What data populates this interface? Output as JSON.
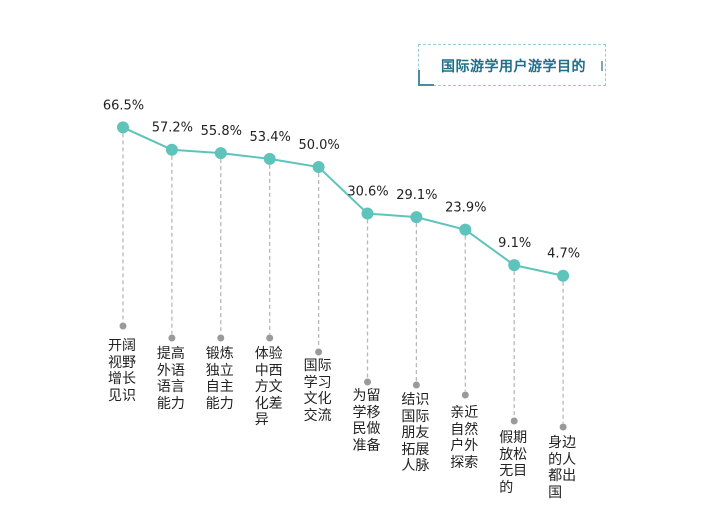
{
  "title": "国际游学用户游学目的",
  "colors": {
    "line": "#5ec4bb",
    "dashes": "#b8b8b8",
    "end_dots": "#9a9a9a",
    "title": "#1f6f89"
  },
  "chart_data": {
    "type": "line",
    "title": "国际游学用户游学目的",
    "categories": [
      "开阔视野增长见识",
      "提高外语语言能力",
      "锻炼独立自主能力",
      "体验中西方文化差异",
      "国际学习文化交流",
      "为留学移民做准备",
      "结识国际朋友拓展人脉",
      "亲近自然户外探索",
      "假期放松无目的",
      "身边的人都出国"
    ],
    "values": [
      66.5,
      57.2,
      55.8,
      53.4,
      50.0,
      30.6,
      29.1,
      23.9,
      9.1,
      4.7
    ],
    "value_labels": [
      "66.5%",
      "57.2%",
      "55.8%",
      "53.4%",
      "50.0%",
      "30.6%",
      "29.1%",
      "23.9%",
      "9.1%",
      "4.7%"
    ],
    "unit": "%",
    "grid": false,
    "legend": "none"
  }
}
